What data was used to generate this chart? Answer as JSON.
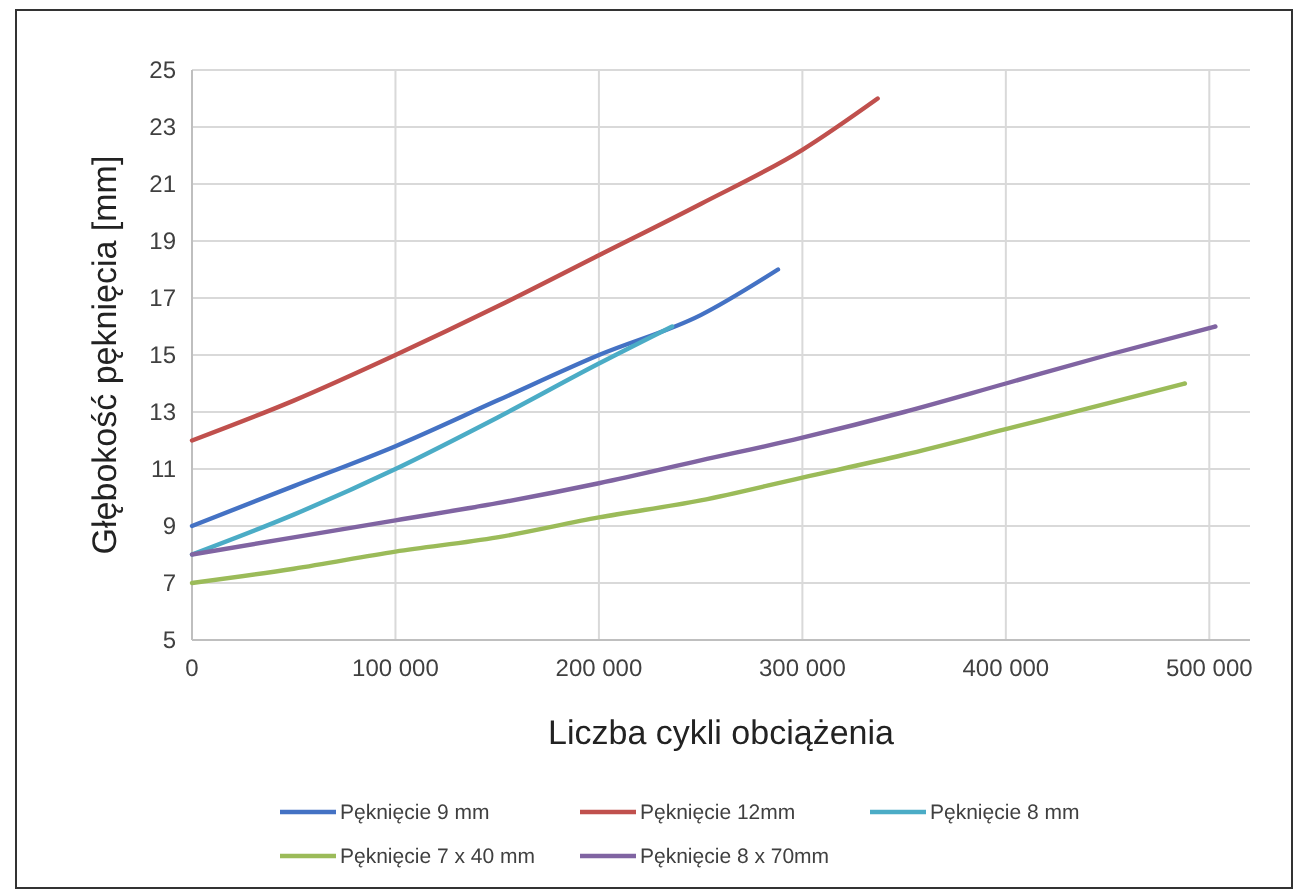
{
  "chart_data": {
    "type": "line",
    "xlabel": "Liczba cykli obciążenia",
    "ylabel": "Głębokość pęknięcia [mm]",
    "xlim": [
      0,
      520000
    ],
    "xticks": [
      {
        "value": 0,
        "label": "0"
      },
      {
        "value": 100000,
        "label": "100 000"
      },
      {
        "value": 200000,
        "label": "200 000"
      },
      {
        "value": 300000,
        "label": "300 000"
      },
      {
        "value": 400000,
        "label": "400 000"
      },
      {
        "value": 500000,
        "label": "500 000"
      }
    ],
    "ylim": [
      5,
      25
    ],
    "yticks": [
      5,
      7,
      9,
      11,
      13,
      15,
      17,
      19,
      21,
      23,
      25
    ],
    "grid": true,
    "legend": "bottom",
    "marker": "none",
    "line_style": "solid",
    "series": [
      {
        "name": "Pęknięcie 9 mm",
        "color": "#4472c4",
        "x": [
          0,
          50000,
          100000,
          150000,
          200000,
          250000,
          288000
        ],
        "values": [
          9,
          10.4,
          11.8,
          13.4,
          15,
          16.4,
          18
        ]
      },
      {
        "name": "Pęknięcie 12mm",
        "color": "#c0504d",
        "x": [
          0,
          50000,
          100000,
          150000,
          200000,
          250000,
          300000,
          337000
        ],
        "values": [
          12,
          13.4,
          15,
          16.7,
          18.5,
          20.3,
          22.2,
          24
        ]
      },
      {
        "name": "Pęknięcie 8 mm",
        "color": "#4bacc6",
        "x": [
          0,
          50000,
          100000,
          150000,
          200000,
          236000
        ],
        "values": [
          8,
          9.4,
          11,
          12.8,
          14.7,
          16
        ]
      },
      {
        "name": "Pęknięcie 7 x 40 mm",
        "color": "#9bbb59",
        "x": [
          0,
          50000,
          100000,
          150000,
          200000,
          250000,
          300000,
          350000,
          400000,
          450000,
          488000
        ],
        "values": [
          7,
          7.5,
          8.1,
          8.6,
          9.3,
          9.9,
          10.7,
          11.5,
          12.4,
          13.3,
          14
        ]
      },
      {
        "name": "Pęknięcie 8 x 70mm",
        "color": "#8064a2",
        "x": [
          0,
          50000,
          100000,
          150000,
          200000,
          250000,
          300000,
          350000,
          400000,
          450000,
          503000
        ],
        "values": [
          8,
          8.6,
          9.2,
          9.8,
          10.5,
          11.3,
          12.1,
          13,
          14,
          15,
          16
        ]
      }
    ]
  }
}
